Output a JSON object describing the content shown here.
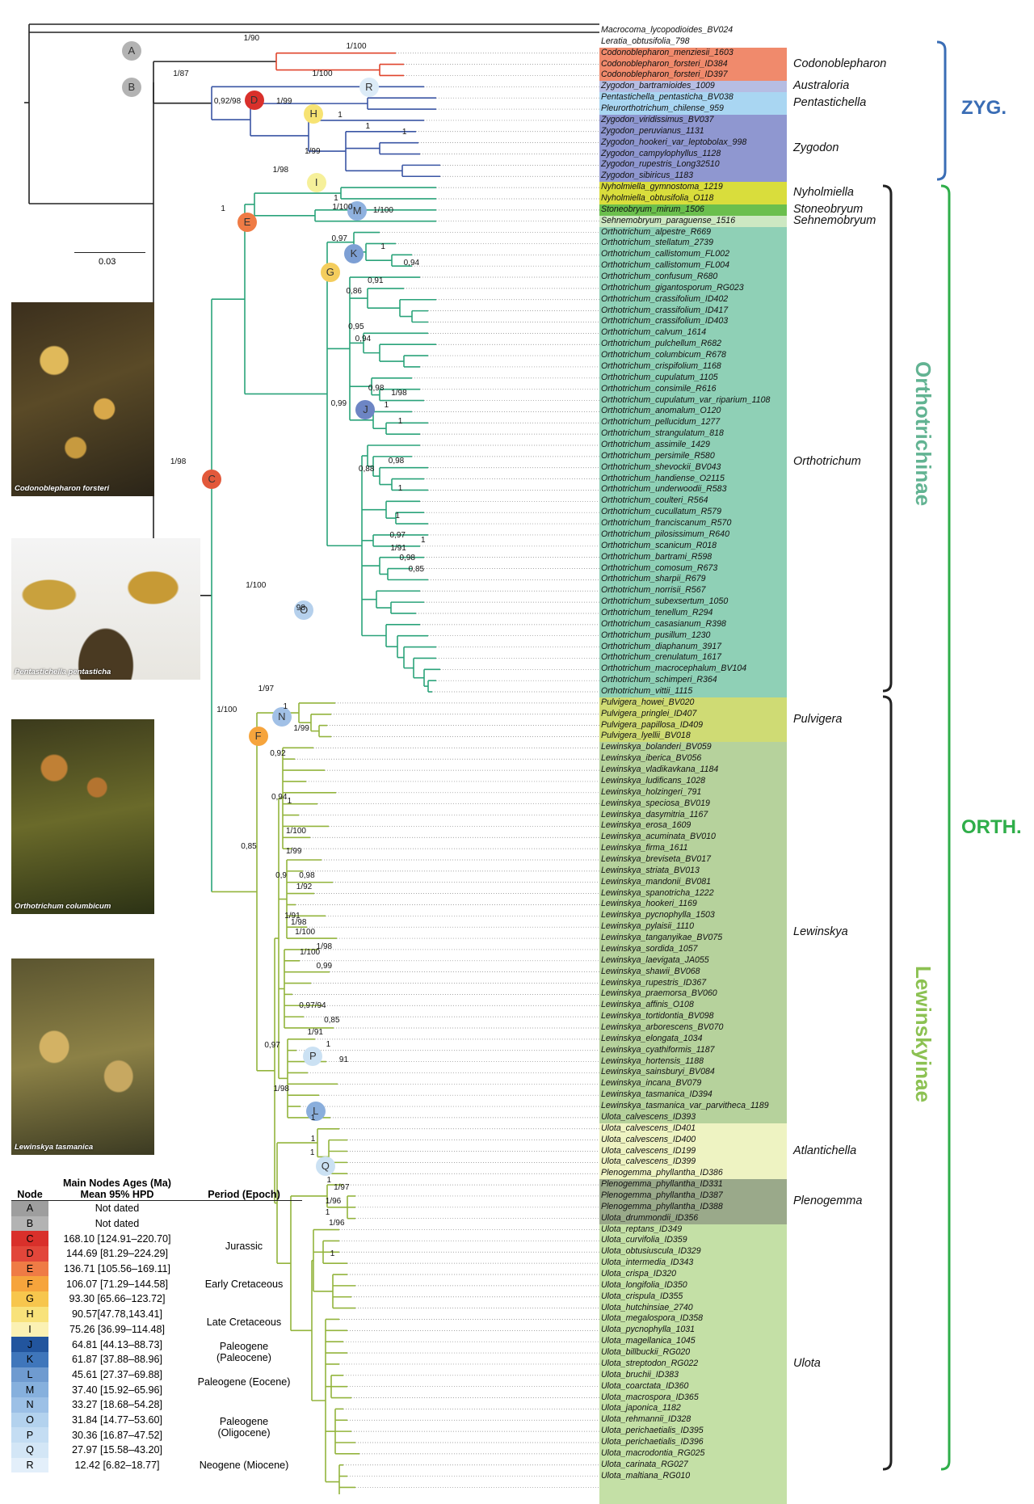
{
  "tips": [
    "Macrocoma_lycopodioides_BV024",
    "Leratia_obtusifolia_798",
    "Codonoblepharon_menziesii_1603",
    "Codonoblepharon_forsteri_ID384",
    "Codonoblepharon_forsteri_ID397",
    "Zygodon_bartramioides_1009",
    "Pentastichella_pentasticha_BV038",
    "Pleurorthotrichum_chilense_959",
    "Zygodon_viridissimus_BV037",
    "Zygodon_peruvianus_1131",
    "Zygodon_hookeri_var_leptobolax_998",
    "Zygodon_campylophyllus_1128",
    "Zygodon_rupestris_Long32510",
    "Zygodon_sibiricus_1183",
    "Nyholmiella_gymnostoma_1219",
    "Nyholmiella_obtusifolia_O118",
    "Stoneobryum_mirum_1506",
    "Sehnemobryum_paraguense_1516",
    "Orthotrichum_alpestre_R669",
    "Orthotrichum_stellatum_2739",
    "Orthotrichum_callistomum_FL002",
    "Orthotrichum_callistomum_FL004",
    "Orthotrichum_confusum_R680",
    "Orthotrichum_gigantosporum_RG023",
    "Orthotrichum_crassifolium_ID402",
    "Orthotrichum_crassifolium_ID417",
    "Orthotrichum_crassifolium_ID403",
    "Orthotrichum_calvum_1614",
    "Orthotrichum_pulchellum_R682",
    "Orthotrichum_columbicum_R678",
    "Orthotrichum_crispifolium_1168",
    "Orthotrichum_cupulatum_1105",
    "Orthotrichum_consimile_R616",
    "Orthotrichum_cupulatum_var_riparium_1108",
    "Orthotrichum_anomalum_O120",
    "Orthotrichum_pellucidum_1277",
    "Orthotrichum_strangulatum_818",
    "Orthotrichum_assimile_1429",
    "Orthotrichum_persimile_R580",
    "Orthotrichum_shevockii_BV043",
    "Orthotrichum_handiense_O2115",
    "Orthotrichum_underwoodii_R583",
    "Orthotrichum_coulteri_R564",
    "Orthotrichum_cucullatum_R579",
    "Orthotrichum_franciscanum_R570",
    "Orthotrichum_pilosissimum_R640",
    "Orthotrichum_scanicum_R018",
    "Orthotrichum_bartrami_R598",
    "Orthotrichum_comosum_R673",
    "Orthotrichum_sharpii_R679",
    "Orthotrichum_norrisii_R567",
    "Orthotrichum_subexsertum_1050",
    "Orthotrichum_tenellum_R294",
    "Orthotrichum_casasianum_R398",
    "Orthotrichum_pusillum_1230",
    "Orthotrichum_diaphanum_3917",
    "Orthotrichum_crenulatum_1617",
    "Orthotrichum_macrocephalum_BV104",
    "Orthotrichum_schimperi_R364",
    "Orthotrichum_vittii_1115",
    "Pulvigera_howei_BV020",
    "Pulvigera_pringlei_ID407",
    "Pulvigera_papillosa_ID409",
    "Pulvigera_lyellii_BV018",
    "Lewinskya_bolanderi_BV059",
    "Lewinskya_iberica_BV056",
    "Lewinskya_vladikavkana_1184",
    "Lewinskya_ludificans_1028",
    "Lewinskya_holzingeri_791",
    "Lewinskya_speciosa_BV019",
    "Lewinskya_dasymitria_1167",
    "Lewinskya_erosa_1609",
    "Lewinskya_acuminata_BV010",
    "Lewinskya_firma_1611",
    "Lewinskya_breviseta_BV017",
    "Lewinskya_striata_BV013",
    "Lewinskya_mandonii_BV081",
    "Lewinskya_spanotricha_1222",
    "Lewinskya_hookeri_1169",
    "Lewinskya_pycnophylla_1503",
    "Lewinskya_pylaisii_1110",
    "Lewinskya_tanganyikae_BV075",
    "Lewinskya_sordida_1057",
    "Lewinskya_laevigata_JA055",
    "Lewinskya_shawii_BV068",
    "Lewinskya_rupestris_ID367",
    "Lewinskya_praemorsa_BV060",
    "Lewinskya_affinis_O108",
    "Lewinskya_tortidontia_BV098",
    "Lewinskya_arborescens_BV070",
    "Lewinskya_elongata_1034",
    "Lewinskya_cyathiformis_1187",
    "Lewinskya_hortensis_1188",
    "Lewinskya_sainsburyi_BV084",
    "Lewinskya_incana_BV079",
    "Lewinskya_tasmanica_ID394",
    "Lewinskya_tasmanica_var_parvitheca_1189",
    "Ulota_calvescens_ID393",
    "Ulota_calvescens_ID401",
    "Ulota_calvescens_ID400",
    "Ulota_calvescens_ID199",
    "Ulota_calvescens_ID399",
    "Plenogemma_phyllantha_ID386",
    "Plenogemma_phyllantha_ID331",
    "Plenogemma_phyllantha_ID387",
    "Plenogemma_phyllantha_ID388",
    "Ulota_drummondii_ID356",
    "Ulota_reptans_ID349",
    "Ulota_curvifolia_ID359",
    "Ulota_obtusiuscula_ID329",
    "Ulota_intermedia_ID343",
    "Ulota_crispa_ID320",
    "Ulota_longifolia_ID350",
    "Ulota_crispula_ID355",
    "Ulota_hutchinsiae_2740",
    "Ulota_megalospora_ID358",
    "Ulota_pycnophylla_1031",
    "Ulota_magellanica_1045",
    "Ulota_billbuckii_RG020",
    "Ulota_streptodon_RG022",
    "Ulota_bruchii_ID383",
    "Ulota_coarctata_ID360",
    "Ulota_macrospora_ID365",
    "Ulota_japonica_1182",
    "Ulota_rehmannii_ID328",
    "Ulota_perichaetialis_ID395",
    "Ulota_perichaetialis_ID396",
    "Ulota_macrodontia_RG025",
    "Ulota_carinata_RG027",
    "Ulota_maltiana_RG010"
  ],
  "tip_colors": {
    "Codonoblepharon": "#e0442c",
    "Zygodon": "#3a55a4",
    "Orthotrichum": "#2aa37a",
    "Ulota": "#93b43c",
    "black": "#222222"
  },
  "genera": [
    {
      "label": "Codonoblepharon",
      "color": "#f08a6c",
      "start": 2,
      "end": 4
    },
    {
      "label": "Australoria",
      "color": "#b6bde3",
      "start": 5,
      "end": 5
    },
    {
      "label": "Pentastichella",
      "color": "#a9d6f2",
      "start": 6,
      "end": 7
    },
    {
      "label": "Zygodon",
      "color": "#8f97d0",
      "start": 8,
      "end": 13
    },
    {
      "label": "Nyholmiella",
      "color": "#d9dd3c",
      "start": 14,
      "end": 15
    },
    {
      "label": "Stoneobryum",
      "color": "#6bbf4d",
      "start": 16,
      "end": 16
    },
    {
      "label": "Sehnemobryum",
      "color": "#cde8c2",
      "start": 17,
      "end": 17
    },
    {
      "label": "Orthotrichum",
      "color": "#8fd0b6",
      "start": 18,
      "end": 59
    },
    {
      "label": "Pulvigera",
      "color": "#cfdb74",
      "start": 60,
      "end": 63
    },
    {
      "label": "Lewinskya",
      "color": "#b6d29c",
      "start": 64,
      "end": 97
    },
    {
      "label": "Atlantichella",
      "color": "#eef3c2",
      "start": 98,
      "end": 102
    },
    {
      "label": "Plenogemma",
      "color": "#9aa98a",
      "start": 103,
      "end": 106
    },
    {
      "label": "Ulota",
      "color": "#c4e0a6",
      "start": 107,
      "end": 131
    }
  ],
  "clades": {
    "zyg": "ZYG.",
    "orth": "ORTH.",
    "orthotrichinae": "Orthotrichinae",
    "lewinskyinae": "Lewinskyinae"
  },
  "scale_bar": "0.03",
  "nodes": [
    {
      "id": "A",
      "color": "#b3b3b3"
    },
    {
      "id": "B",
      "color": "#b3b3b3"
    },
    {
      "id": "C",
      "color": "#e2593b"
    },
    {
      "id": "D",
      "color": "#d9302b"
    },
    {
      "id": "E",
      "color": "#ef7b45"
    },
    {
      "id": "F",
      "color": "#f6a43c"
    },
    {
      "id": "G",
      "color": "#f4cd5d"
    },
    {
      "id": "H",
      "color": "#f7e373"
    },
    {
      "id": "I",
      "color": "#f6f09a"
    },
    {
      "id": "J",
      "color": "#6d85c4"
    },
    {
      "id": "K",
      "color": "#7d9fd4"
    },
    {
      "id": "L",
      "color": "#8aaedc"
    },
    {
      "id": "M",
      "color": "#8fb1df"
    },
    {
      "id": "N",
      "color": "#a1c0e6"
    },
    {
      "id": "O",
      "color": "#b5d0ec"
    },
    {
      "id": "P",
      "color": "#cbe1f3"
    },
    {
      "id": "Q",
      "color": "#cbe1f3"
    },
    {
      "id": "R",
      "color": "#dcebf7"
    }
  ],
  "support": [
    {
      "text": "1/90"
    },
    {
      "text": "1/100"
    },
    {
      "text": "1/87"
    },
    {
      "text": "1/100"
    },
    {
      "text": "0,92/98"
    },
    {
      "text": "1/99"
    },
    {
      "text": "1"
    },
    {
      "text": "1"
    },
    {
      "text": "1"
    },
    {
      "text": "1/99"
    },
    {
      "text": "1/98"
    },
    {
      "text": "1"
    },
    {
      "text": "1/100"
    },
    {
      "text": "1"
    },
    {
      "text": "1/100"
    },
    {
      "text": "0,97"
    },
    {
      "text": "1"
    },
    {
      "text": "0,94"
    },
    {
      "text": "0,91"
    },
    {
      "text": "0,86"
    },
    {
      "text": "0,95"
    },
    {
      "text": "0,94"
    },
    {
      "text": "0,98"
    },
    {
      "text": "1/98"
    },
    {
      "text": "1"
    },
    {
      "text": "0,99"
    },
    {
      "text": "1"
    },
    {
      "text": "0,98"
    },
    {
      "text": "0,88"
    },
    {
      "text": "1"
    },
    {
      "text": "1"
    },
    {
      "text": "0,97"
    },
    {
      "text": "1"
    },
    {
      "text": "1/91"
    },
    {
      "text": "0,98"
    },
    {
      "text": "0,85"
    },
    {
      "text": "1/98"
    },
    {
      "text": "1/100"
    },
    {
      "text": "98"
    },
    {
      "text": "1/97"
    },
    {
      "text": "1"
    },
    {
      "text": "1/99"
    },
    {
      "text": "0,92"
    },
    {
      "text": "0,94"
    },
    {
      "text": "1"
    },
    {
      "text": "1/100"
    },
    {
      "text": "1/99"
    },
    {
      "text": "0,9"
    },
    {
      "text": "0,98"
    },
    {
      "text": "1/92"
    },
    {
      "text": "1/91"
    },
    {
      "text": "1/98"
    },
    {
      "text": "0,85"
    },
    {
      "text": "1/100"
    },
    {
      "text": "1/100"
    },
    {
      "text": "1/98"
    },
    {
      "text": "0,99"
    },
    {
      "text": "1/100"
    },
    {
      "text": "0,97/94"
    },
    {
      "text": "0,85"
    },
    {
      "text": "1/91"
    },
    {
      "text": "1"
    },
    {
      "text": "91"
    },
    {
      "text": "0,97"
    },
    {
      "text": "1/98"
    },
    {
      "text": "1"
    },
    {
      "text": "1"
    },
    {
      "text": "1"
    },
    {
      "text": "1"
    },
    {
      "text": "1/97"
    },
    {
      "text": "1/96"
    },
    {
      "text": "1"
    },
    {
      "text": "1/96"
    },
    {
      "text": "1"
    }
  ],
  "photos": [
    {
      "caption": "Codonoblepharon forsteri"
    },
    {
      "caption": "Pentastichella pentasticha"
    },
    {
      "caption": "Orthotrichum columbicum"
    },
    {
      "caption": "Lewinskya tasmanica"
    }
  ],
  "ages_table": {
    "headers": {
      "node": "Node",
      "ages": "Main Nodes Ages (Ma)\nMean 95% HPD",
      "period": "Period (Epoch)"
    },
    "rows": [
      {
        "node": "A",
        "age": "Not dated",
        "color": "#9e9e9e"
      },
      {
        "node": "B",
        "age": "Not dated",
        "color": "#b3b3b3"
      },
      {
        "node": "C",
        "age": "168.10 [124.91–220.70]",
        "color": "#d9302b"
      },
      {
        "node": "D",
        "age": "144.69 [81.29–224.29]",
        "color": "#e2463a"
      },
      {
        "node": "E",
        "age": "136.71 [105.56–169.11]",
        "color": "#ef7b45"
      },
      {
        "node": "F",
        "age": "106.07 [71.29–144.58]",
        "color": "#f6a43c"
      },
      {
        "node": "G",
        "age": "93.30 [65.66–123.72]",
        "color": "#f7c64d"
      },
      {
        "node": "H",
        "age": "90.57[47.78,143.41]",
        "color": "#f8e27a"
      },
      {
        "node": "I",
        "age": "75.26 [36.99–114.48]",
        "color": "#fbf1b3"
      },
      {
        "node": "J",
        "age": "64.81 [44.13–88.73]",
        "color": "#22559e"
      },
      {
        "node": "K",
        "age": "61.87 [37.88–88.96]",
        "color": "#3f76bb"
      },
      {
        "node": "L",
        "age": "45.61 [27.37–69.88]",
        "color": "#6f9bd0"
      },
      {
        "node": "M",
        "age": "37.40 [15.92–65.96]",
        "color": "#86b0dd"
      },
      {
        "node": "N",
        "age": "33.27 [18.68–54.28]",
        "color": "#9cc0e6"
      },
      {
        "node": "O",
        "age": "31.84 [14.77–53.60]",
        "color": "#b3d2ee"
      },
      {
        "node": "P",
        "age": "30.36 [16.87–47.52]",
        "color": "#c4ddf3"
      },
      {
        "node": "Q",
        "age": "27.97 [15.58–43.20]",
        "color": "#d3e6f6"
      },
      {
        "node": "R",
        "age": "12.42 [6.82–18.77]",
        "color": "#e3effa"
      }
    ],
    "periods": [
      {
        "label": "Jurassic",
        "rows": [
          2,
          3
        ]
      },
      {
        "label": "Early Cretaceous",
        "rows": [
          4,
          6
        ]
      },
      {
        "label": "Late Cretaceous",
        "rows": [
          7,
          8
        ]
      },
      {
        "label": "Paleogene\n(Paleocene)",
        "rows": [
          9,
          10
        ]
      },
      {
        "label": "Paleogene (Eocene)",
        "rows": [
          11,
          12
        ]
      },
      {
        "label": "Paleogene\n(Oligocene)",
        "rows": [
          13,
          16
        ]
      },
      {
        "label": "Neogene (Miocene)",
        "rows": [
          17,
          17
        ]
      }
    ]
  }
}
